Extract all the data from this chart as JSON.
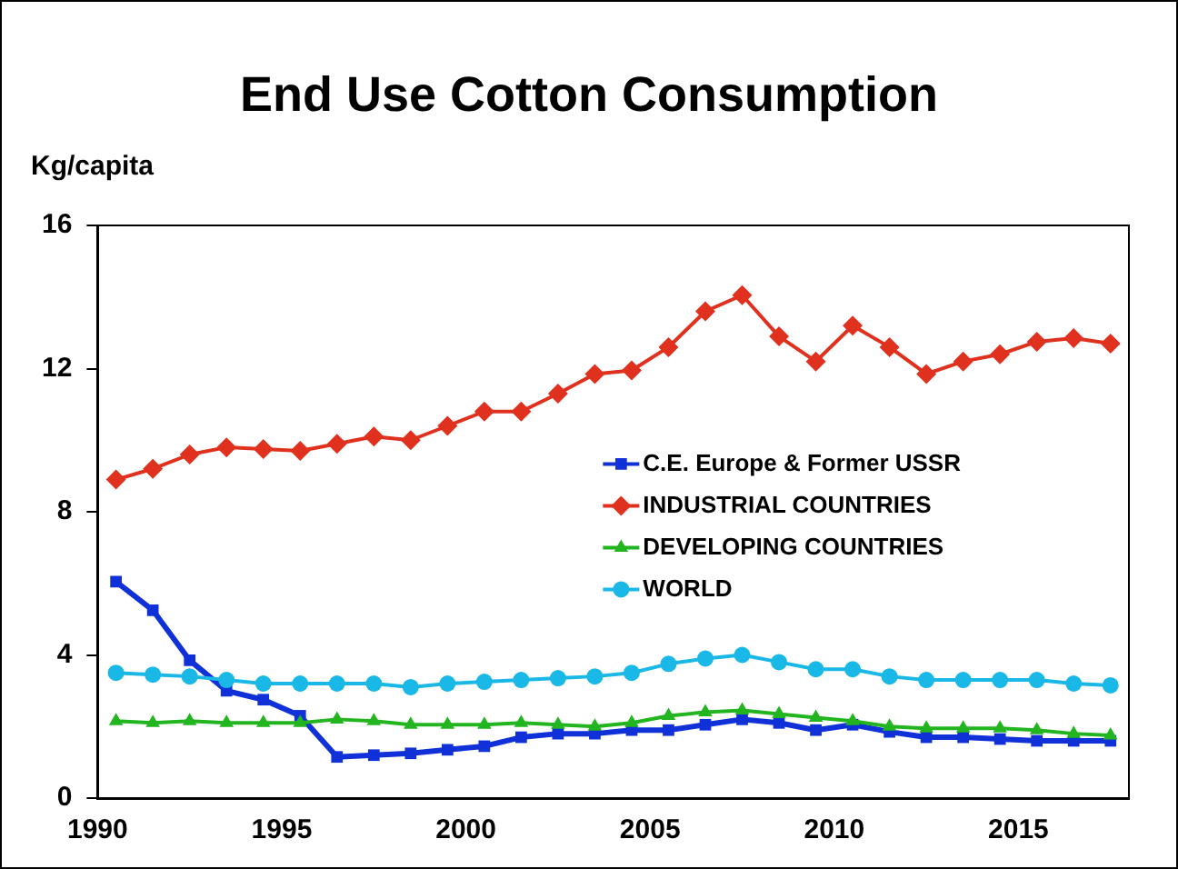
{
  "chart_data": {
    "type": "line",
    "title": "End Use Cotton Consumption",
    "ylabel": "Kg/capita",
    "x": [
      1990.5,
      1991.5,
      1992.5,
      1993.5,
      1994.5,
      1995.5,
      1996.5,
      1997.5,
      1998.5,
      1999.5,
      2000.5,
      2001.5,
      2002.5,
      2003.5,
      2004.5,
      2005.5,
      2006.5,
      2007.5,
      2008.5,
      2009.5,
      2010.5,
      2011.5,
      2012.5,
      2013.5,
      2014.5,
      2015.5,
      2016.5,
      2017.5
    ],
    "series": [
      {
        "name": "C.E. Europe & Former USSR",
        "color": "#1030d8",
        "marker": "square",
        "values": [
          6.05,
          5.25,
          3.85,
          3.0,
          2.75,
          2.3,
          1.15,
          1.2,
          1.25,
          1.35,
          1.45,
          1.7,
          1.8,
          1.8,
          1.9,
          1.9,
          2.05,
          2.2,
          2.1,
          1.9,
          2.05,
          1.85,
          1.7,
          1.7,
          1.65,
          1.6,
          1.6,
          1.6
        ]
      },
      {
        "name": "INDUSTRIAL COUNTRIES",
        "color": "#e0301e",
        "marker": "diamond",
        "values": [
          8.9,
          9.2,
          9.6,
          9.8,
          9.75,
          9.7,
          9.9,
          10.1,
          10.0,
          10.4,
          10.8,
          10.8,
          11.3,
          11.85,
          11.95,
          12.6,
          13.6,
          14.05,
          12.9,
          12.2,
          13.2,
          12.6,
          11.85,
          12.2,
          12.4,
          12.75,
          12.85,
          12.7
        ]
      },
      {
        "name": "DEVELOPING COUNTRIES",
        "color": "#22b520",
        "marker": "triangle",
        "values": [
          2.15,
          2.1,
          2.15,
          2.1,
          2.1,
          2.1,
          2.2,
          2.15,
          2.05,
          2.05,
          2.05,
          2.1,
          2.05,
          2.0,
          2.1,
          2.3,
          2.4,
          2.45,
          2.35,
          2.25,
          2.15,
          2.0,
          1.95,
          1.95,
          1.95,
          1.9,
          1.8,
          1.75
        ]
      },
      {
        "name": "WORLD",
        "color": "#1ab8e6",
        "marker": "circle",
        "values": [
          3.5,
          3.45,
          3.4,
          3.3,
          3.2,
          3.2,
          3.2,
          3.2,
          3.1,
          3.2,
          3.25,
          3.3,
          3.35,
          3.4,
          3.5,
          3.75,
          3.9,
          4.0,
          3.8,
          3.6,
          3.6,
          3.4,
          3.3,
          3.3,
          3.3,
          3.3,
          3.2,
          3.15
        ]
      }
    ],
    "xlim": [
      1990,
      2018
    ],
    "xticks": [
      1990,
      1995,
      2000,
      2005,
      2010,
      2015
    ],
    "ylim": [
      0,
      16
    ],
    "yticks": [
      0,
      4,
      8,
      12,
      16
    ],
    "grid": false,
    "legend": "center right",
    "line_style": "solid"
  }
}
